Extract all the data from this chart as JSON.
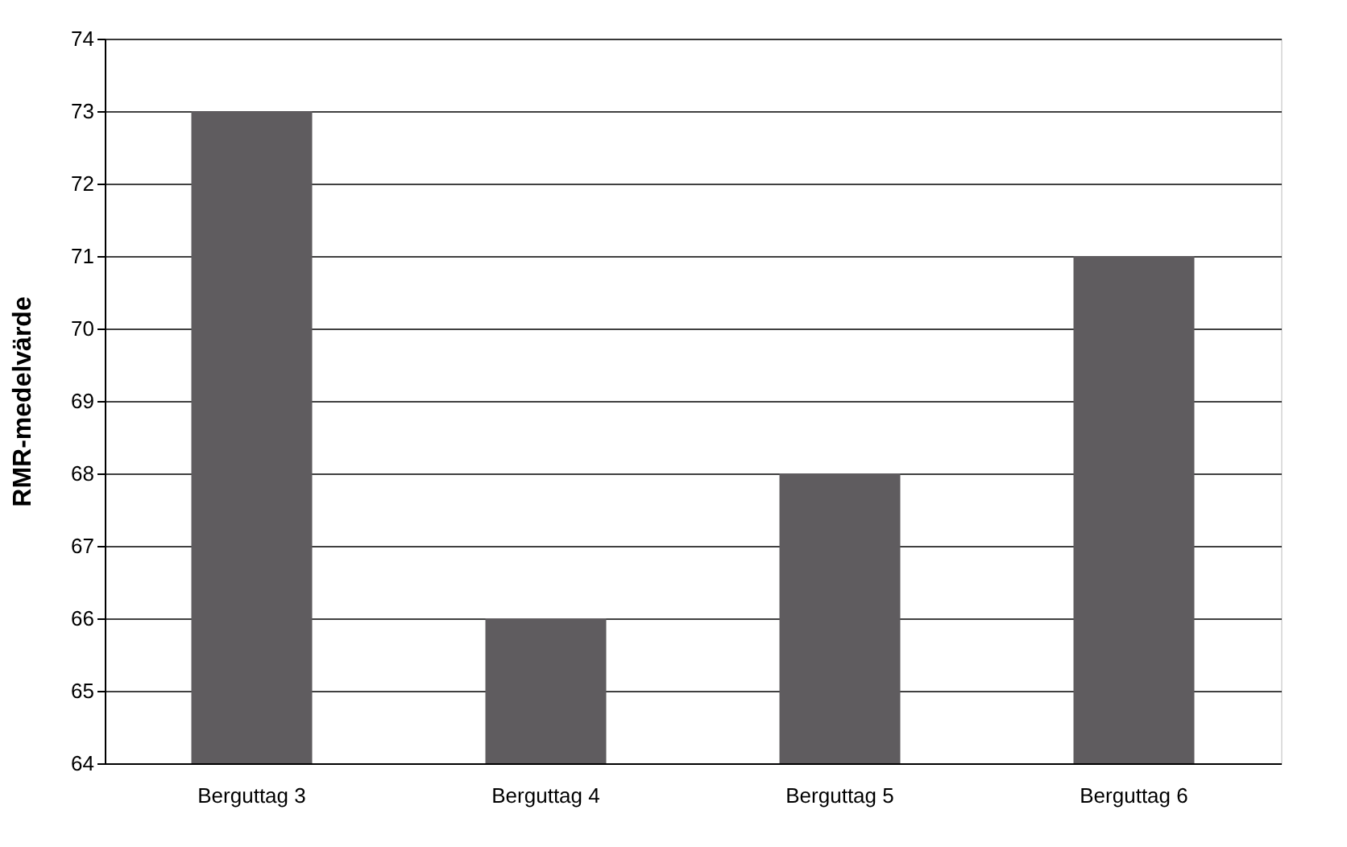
{
  "chart_data": {
    "type": "bar",
    "ylabel": "RMR-medelvärde",
    "categories": [
      "Berguttag 3",
      "Berguttag 4",
      "Berguttag 5",
      "Berguttag 6"
    ],
    "values": [
      73,
      66,
      68,
      71
    ],
    "color": "#5f5c5f",
    "ylim": [
      64,
      74
    ],
    "yticks": [
      64,
      65,
      66,
      67,
      68,
      69,
      70,
      71,
      72,
      73,
      74
    ],
    "grid": "y"
  }
}
